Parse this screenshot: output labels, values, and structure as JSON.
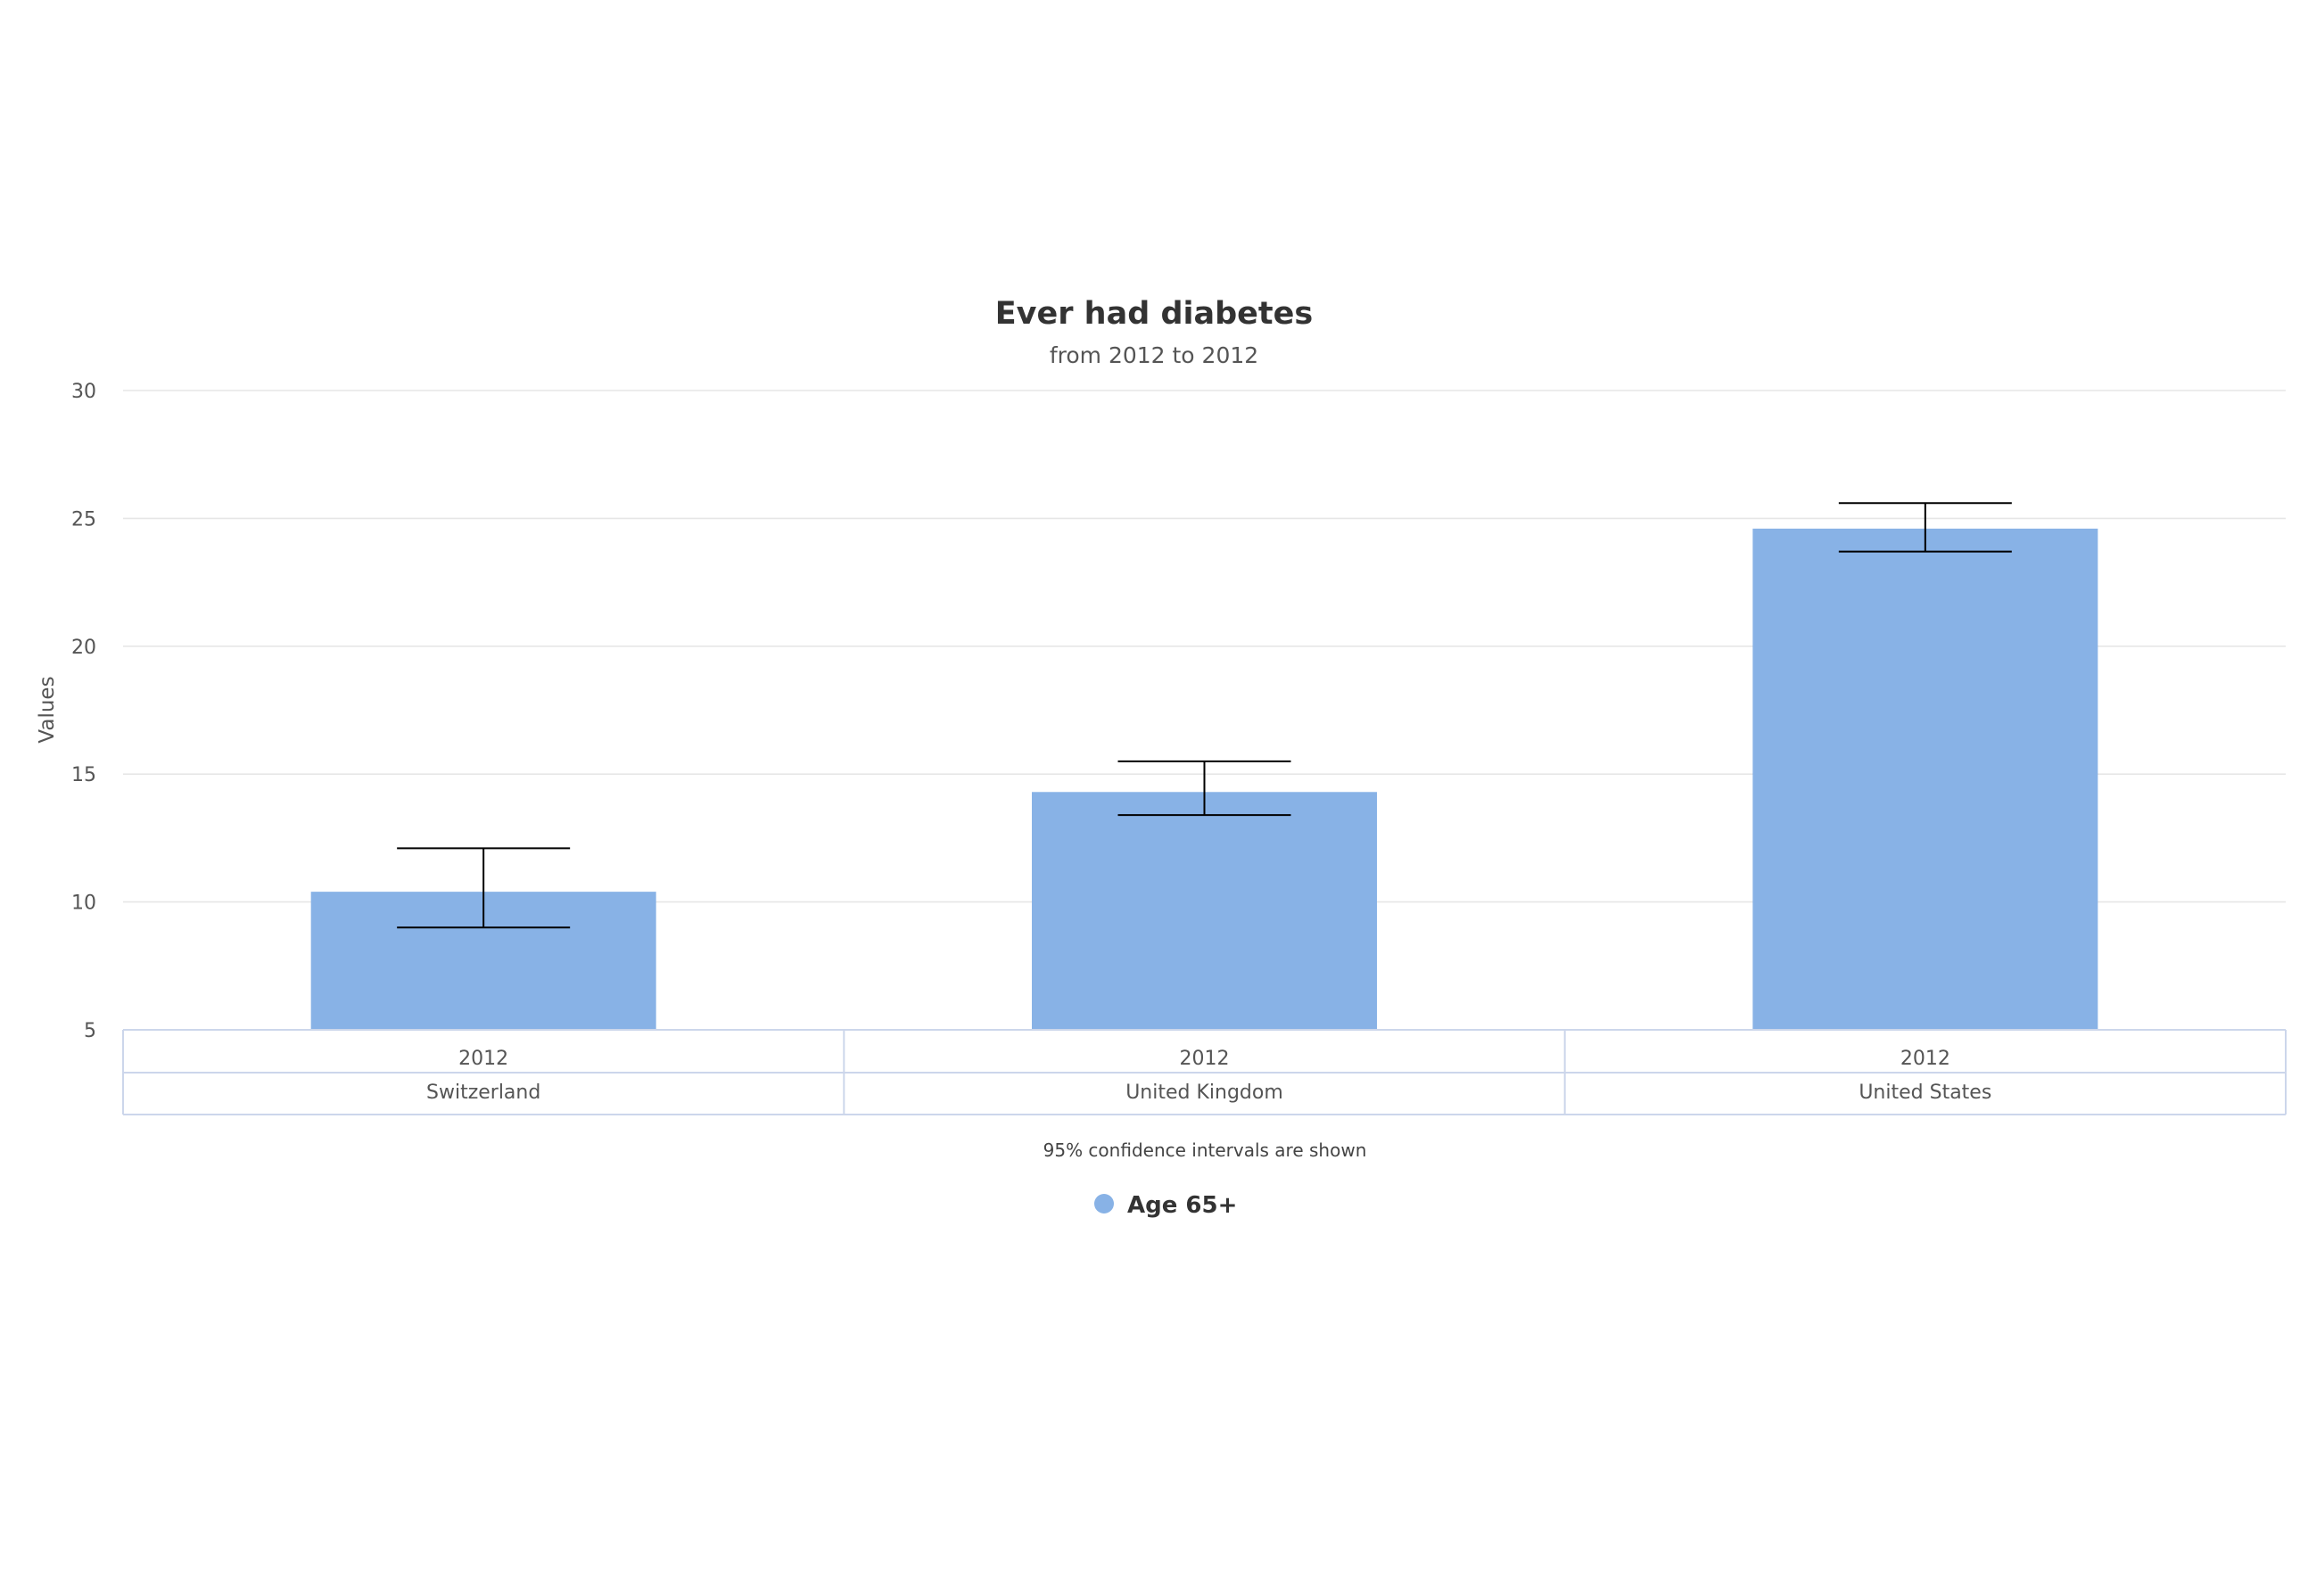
{
  "chart_data": {
    "type": "bar",
    "title": "Ever had diabetes",
    "subtitle": "from 2012 to 2012",
    "ylabel": "Values",
    "xlabel": "",
    "ylim": [
      5,
      30
    ],
    "yticks": [
      5,
      10,
      15,
      20,
      25,
      30
    ],
    "grid": true,
    "legend_position": "bottom-center",
    "categories": [
      {
        "year": "2012",
        "country": "Switzerland"
      },
      {
        "year": "2012",
        "country": "United Kingdom"
      },
      {
        "year": "2012",
        "country": "United States"
      }
    ],
    "series": [
      {
        "name": "Age 65+",
        "color": "#88b2e6",
        "values": [
          10.4,
          14.3,
          24.6
        ],
        "error_low": [
          9.0,
          13.4,
          23.7
        ],
        "error_high": [
          12.1,
          15.5,
          25.6
        ]
      }
    ],
    "footnote": "95% confidence intervals are shown"
  }
}
